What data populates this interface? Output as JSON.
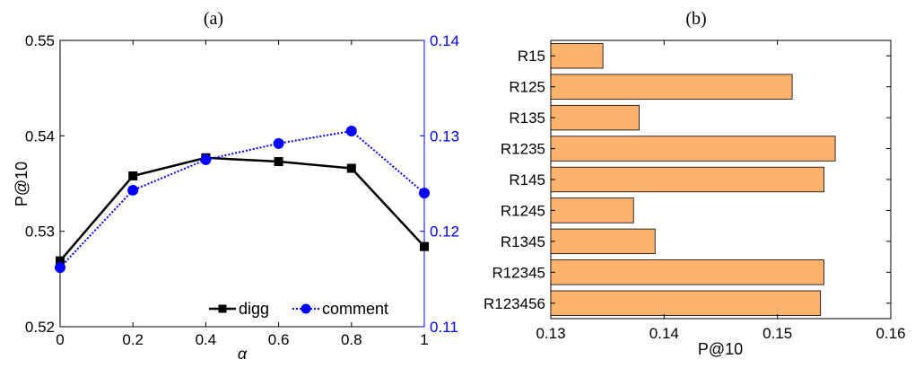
{
  "chart_data": [
    {
      "type": "line",
      "title": "(a)",
      "xlabel": "α",
      "ylabel": "P@10",
      "x": [
        0,
        0.2,
        0.4,
        0.6,
        0.8,
        1
      ],
      "x_ticks": [
        "0",
        "0.2",
        "0.4",
        "0.6",
        "0.8",
        "1"
      ],
      "xlim": [
        0,
        1
      ],
      "ylim": [
        0.52,
        0.55
      ],
      "y_ticks": [
        "0.52",
        "0.53",
        "0.54",
        "0.55"
      ],
      "y2lim": [
        0.11,
        0.14
      ],
      "y2_ticks": [
        "0.11",
        "0.12",
        "0.13",
        "0.14"
      ],
      "legend_position": "bottom-right",
      "grid": false,
      "series": [
        {
          "name": "digg",
          "axis": "left",
          "color": "#000000",
          "marker": "square",
          "line": "solid",
          "values": [
            0.5269,
            0.5358,
            0.5377,
            0.5373,
            0.5366,
            0.5284
          ]
        },
        {
          "name": "comment",
          "axis": "right",
          "color": "#0000ff",
          "marker": "circle",
          "line": "dotted",
          "values": [
            0.1162,
            0.1243,
            0.1275,
            0.1292,
            0.1305,
            0.124
          ]
        }
      ]
    },
    {
      "type": "bar",
      "orientation": "horizontal",
      "title": "(b)",
      "xlabel": "P@10",
      "ylabel": "",
      "xlim": [
        0.13,
        0.16
      ],
      "x_ticks": [
        "0.13",
        "0.14",
        "0.15",
        "0.16"
      ],
      "grid": false,
      "bar_color": "#fdb26e",
      "categories": [
        "R15",
        "R125",
        "R135",
        "R1235",
        "R145",
        "R1245",
        "R1345",
        "R12345",
        "R123456"
      ],
      "values": [
        0.1346,
        0.1513,
        0.1378,
        0.1551,
        0.1541,
        0.1373,
        0.1392,
        0.1541,
        0.1538
      ]
    }
  ]
}
